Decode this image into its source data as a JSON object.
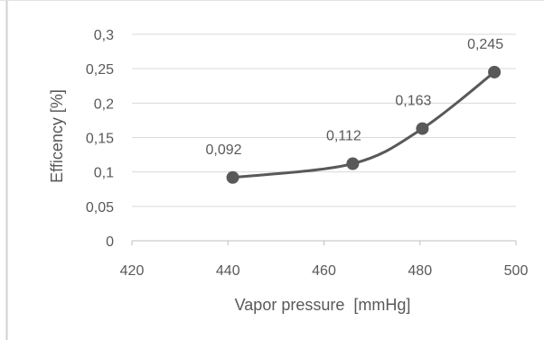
{
  "chart_data": {
    "type": "line",
    "smooth": true,
    "xlabel": "Vapor pressure  [mmHg]",
    "ylabel": "Efficency [%]",
    "xlim": [
      420,
      500
    ],
    "ylim": [
      0,
      0.3
    ],
    "x_ticks": [
      420,
      440,
      460,
      480,
      500
    ],
    "y_ticks": [
      0,
      0.05,
      0.1,
      0.15,
      0.2,
      0.25,
      0.3
    ],
    "x_tick_labels": [
      "420",
      "440",
      "460",
      "480",
      "500"
    ],
    "y_tick_labels": [
      "0",
      "0,05",
      "0,1",
      "0,15",
      "0,2",
      "0,25",
      "0,3"
    ],
    "grid": "horizontal",
    "legend": "none",
    "colors": {
      "series": "#595959",
      "grid": "#d9d9d9",
      "axis": "#bfbfbf",
      "text": "#595959",
      "frame_left": "#d0d0d0",
      "frame_top": "#e3e3e3"
    },
    "series": [
      {
        "x": [
          441,
          466,
          480.5,
          495.5
        ],
        "values": [
          0.092,
          0.112,
          0.163,
          0.245
        ],
        "labels": [
          "0,092",
          "0,112",
          "0,163",
          "0,245"
        ]
      }
    ]
  }
}
